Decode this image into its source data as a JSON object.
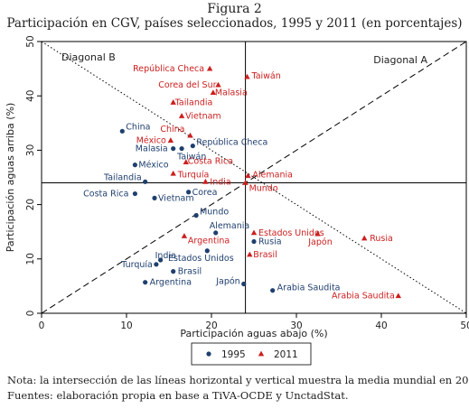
{
  "figure": {
    "label": "Figura 2",
    "title": "Participación en CGV, países seleccionados, 1995 y 2011 (en porcentajes)",
    "note": "Nota: la intersección de las líneas horizontal y vertical muestra la media mundial en 2011.",
    "source": "Fuentes: elaboración propia en base a TiVA-OCDE y UnctadStat."
  },
  "colors": {
    "s1995": "#1f3f6e",
    "s2011": "#cc1f1f",
    "axis": "#000000",
    "text": "#222222"
  },
  "chart_data": {
    "type": "scatter",
    "xlabel": "Participación aguas abajo (%)",
    "ylabel": "Participación aguas arriba (%)",
    "xlim": [
      0,
      50
    ],
    "ylim": [
      0,
      50
    ],
    "xticks": [
      0,
      10,
      20,
      30,
      40,
      50
    ],
    "yticks": [
      0,
      10,
      20,
      30,
      40,
      50
    ],
    "grid": false,
    "legend_position": "bottom",
    "reference_lines": {
      "horizontal_y": 24,
      "vertical_x": 24,
      "diagonal_a_label": "Diagonal A",
      "diagonal_b_label": "Diagonal B"
    },
    "series": [
      {
        "name": "1995",
        "marker": "circle",
        "points": [
          {
            "label": "China",
            "x": 9.5,
            "y": 33.5
          },
          {
            "label": "República Checa",
            "x": 17.8,
            "y": 30.8
          },
          {
            "label": "Malasia",
            "x": 15.5,
            "y": 30.3
          },
          {
            "label": "Taiwán",
            "x": 16.5,
            "y": 30.3
          },
          {
            "label": "México",
            "x": 11.0,
            "y": 27.3
          },
          {
            "label": "Tailandia",
            "x": 12.2,
            "y": 24.2
          },
          {
            "label": "Costa Rica",
            "x": 11.0,
            "y": 22.0
          },
          {
            "label": "Corea",
            "x": 17.3,
            "y": 22.3
          },
          {
            "label": "Vietnam",
            "x": 13.3,
            "y": 21.2
          },
          {
            "label": "Mundo",
            "x": 18.2,
            "y": 18.0
          },
          {
            "label": "Alemania",
            "x": 20.5,
            "y": 14.8
          },
          {
            "label": "Rusia",
            "x": 25.0,
            "y": 13.2
          },
          {
            "label": "India",
            "x": 14.0,
            "y": 9.8
          },
          {
            "label": "Estados Unidos",
            "x": 19.5,
            "y": 11.5
          },
          {
            "label": "Turquía",
            "x": 13.5,
            "y": 9.0
          },
          {
            "label": "Brasil",
            "x": 15.5,
            "y": 7.7
          },
          {
            "label": "Argentina",
            "x": 12.2,
            "y": 5.7
          },
          {
            "label": "Japón",
            "x": 23.8,
            "y": 5.4
          },
          {
            "label": "Arabia Saudita",
            "x": 27.2,
            "y": 4.2
          }
        ]
      },
      {
        "name": "2011",
        "marker": "triangle",
        "points": [
          {
            "label": "República Checa",
            "x": 19.8,
            "y": 45.0
          },
          {
            "label": "Taiwán",
            "x": 24.2,
            "y": 43.5
          },
          {
            "label": "Corea del Sur",
            "x": 20.8,
            "y": 42.0
          },
          {
            "label": "Malasia",
            "x": 20.2,
            "y": 40.6
          },
          {
            "label": "Tailandia",
            "x": 15.5,
            "y": 38.8
          },
          {
            "label": "Vietnam",
            "x": 16.5,
            "y": 36.3
          },
          {
            "label": "China",
            "x": 17.5,
            "y": 32.7
          },
          {
            "label": "México",
            "x": 15.2,
            "y": 31.8
          },
          {
            "label": "Costa Rica",
            "x": 17.0,
            "y": 27.8
          },
          {
            "label": "Turquía",
            "x": 15.5,
            "y": 25.7
          },
          {
            "label": "India",
            "x": 19.3,
            "y": 24.2
          },
          {
            "label": "Alemania",
            "x": 24.3,
            "y": 25.3
          },
          {
            "label": "Mundo",
            "x": 24.0,
            "y": 24.0
          },
          {
            "label": "Estados Unidos",
            "x": 25.0,
            "y": 14.8
          },
          {
            "label": "Japón",
            "x": 32.5,
            "y": 14.6
          },
          {
            "label": "Rusia",
            "x": 38.0,
            "y": 13.8
          },
          {
            "label": "Argentina",
            "x": 16.8,
            "y": 14.2
          },
          {
            "label": "Brasil",
            "x": 24.5,
            "y": 10.8
          },
          {
            "label": "Arabia Saudita",
            "x": 42.0,
            "y": 3.2
          }
        ]
      }
    ]
  }
}
